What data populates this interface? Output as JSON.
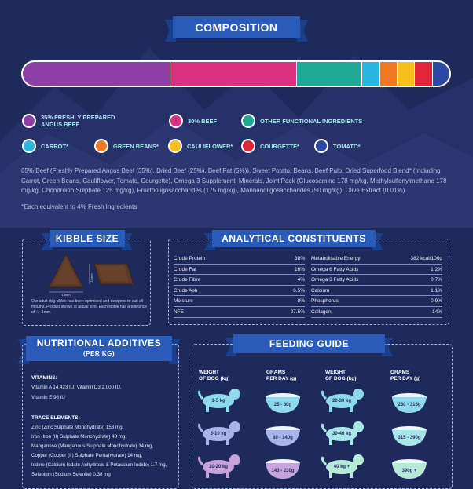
{
  "composition": {
    "title": "COMPOSITION",
    "bar": [
      {
        "name": "35% freshly prepared angus beef",
        "fraction": 0.35,
        "color": "#8e3fa6"
      },
      {
        "name": "30% beef",
        "fraction": 0.3,
        "color": "#d9307f"
      },
      {
        "name": "other functional ingredients",
        "fraction": 0.155,
        "color": "#1faa98"
      },
      {
        "name": "carrot",
        "fraction": 0.04,
        "color": "#29b6e0"
      },
      {
        "name": "green beans",
        "fraction": 0.04,
        "color": "#f07a23"
      },
      {
        "name": "cauliflower",
        "fraction": 0.04,
        "color": "#f5c01c"
      },
      {
        "name": "courgette",
        "fraction": 0.04,
        "color": "#e0243a"
      },
      {
        "name": "tomato",
        "fraction": 0.04,
        "color": "#2c4aa5"
      }
    ],
    "legend": [
      {
        "label_l1": "35% FRESHLY PREPARED",
        "label_l2": "ANGUS BEEF",
        "color": "#8e3fa6"
      },
      {
        "label_l1": "30% BEEF",
        "label_l2": "",
        "color": "#d9307f"
      },
      {
        "label_l1": "OTHER FUNCTIONAL INGREDIENTS",
        "label_l2": "",
        "color": "#1faa98"
      },
      {
        "label_l1": "CARROT*",
        "label_l2": "",
        "color": "#29b6e0"
      },
      {
        "label_l1": "GREEN BEANS*",
        "label_l2": "",
        "color": "#f07a23"
      },
      {
        "label_l1": "CAULIFLOWER*",
        "label_l2": "",
        "color": "#f5c01c"
      },
      {
        "label_l1": "COURGETTE*",
        "label_l2": "",
        "color": "#e0243a"
      },
      {
        "label_l1": "TOMATO*",
        "label_l2": "",
        "color": "#2c4aa5"
      }
    ],
    "ingredients": "65% Beef (Freshly Prepared Angus Beef (35%), Dried Beef (25%), Beef Fat (5%)), Sweet Potato, Beans, Beef Pulp, Dried Superfood Blend* (Including Carrot, Green Beans, Cauliflower, Tomato, Courgette), Omega 3 Supplement, Minerals, Joint Pack (Glucosamine 178 mg/kg, Methylsulfonylmethane 178 mg/kg, Chondroitin Sulphate 125 mg/kg), Fructooligosaccharides (175 mg/kg), Mannanoligosaccharides (50 mg/kg), Olive Extract (0.01%)",
    "footnote": "*Each equivalent to 4% Fresh Ingredients"
  },
  "kibble": {
    "title": "KIBBLE SIZE",
    "size_h": "13mm",
    "size_w": "13mm",
    "description": "Our adult dog kibble has been optimised and designed to suit all mouths. Product shown at actual size. Each kibble has a tolerance of +/- 1mm."
  },
  "analytical": {
    "title": "ANALYTICAL CONSTITUENTS",
    "left": [
      {
        "name": "Crude Protein",
        "value": "38%"
      },
      {
        "name": "Crude Fat",
        "value": "16%"
      },
      {
        "name": "Crude Fibre",
        "value": "4%"
      },
      {
        "name": "Crude Ash",
        "value": "6.5%"
      },
      {
        "name": "Moisture",
        "value": "8%"
      },
      {
        "name": "NFE",
        "value": "27.5%"
      }
    ],
    "right": [
      {
        "name": "Metabolisable Energy",
        "value": "382 kcal/100g"
      },
      {
        "name": "Omega 6 Fatty Acids",
        "value": "1.2%"
      },
      {
        "name": "Omega 3 Fatty Acids",
        "value": "0.7%"
      },
      {
        "name": "Calcium",
        "value": "1.1%"
      },
      {
        "name": "Phosphorus",
        "value": "0.9%"
      },
      {
        "name": "Collagen",
        "value": "14%"
      }
    ]
  },
  "additives": {
    "title": "NUTRITIONAL ADDITIVES",
    "subtitle": "(PER KG)",
    "vitamins_heading": "VITAMINS:",
    "vitamins": [
      "Vitamin A 14,423 IU, Vitamin D3 2,000 IU,",
      "Vitamin E 96 IU"
    ],
    "trace_heading": "TRACE ELEMENTS:",
    "trace": [
      "Zinc (Zinc Sulphate Monohydrate) 153 mg,",
      "Iron (Iron (II) Sulphate Monohydrate) 48 mg,",
      "Manganese (Manganous Sulphate Monohydrate) 34 mg,",
      "Copper (Copper (II) Sulphate Pentahydrate) 14 mg,",
      "Iodine (Calcium Iodate Anhydrous & Potassium Iodide) 1.7 mg,",
      "Selenium (Sodium Selenite) 0.38 mg"
    ]
  },
  "feeding": {
    "title": "FEEDING GUIDE",
    "head_weight": [
      "WEIGHT",
      "OF DOG (kg)"
    ],
    "head_grams": [
      "GRAMS",
      "PER DAY (g)"
    ],
    "rows_left": [
      {
        "weight": "1-5 kg",
        "grams": "25 - 80g"
      },
      {
        "weight": "5-10 kg",
        "grams": "80 - 140g"
      },
      {
        "weight": "10-20 kg",
        "grams": "140 - 230g"
      }
    ],
    "rows_right": [
      {
        "weight": "20-30 kg",
        "grams": "230 - 315g"
      },
      {
        "weight": "30-40 kg",
        "grams": "315 - 390g"
      },
      {
        "weight": "40 kg +",
        "grams": "390g +"
      }
    ],
    "colors_left": [
      "#8fd9ec",
      "#a9b3e8",
      "#c7a3dc"
    ],
    "colors_right": [
      "#8fd9ec",
      "#a8e6ea",
      "#b7ead9"
    ]
  }
}
